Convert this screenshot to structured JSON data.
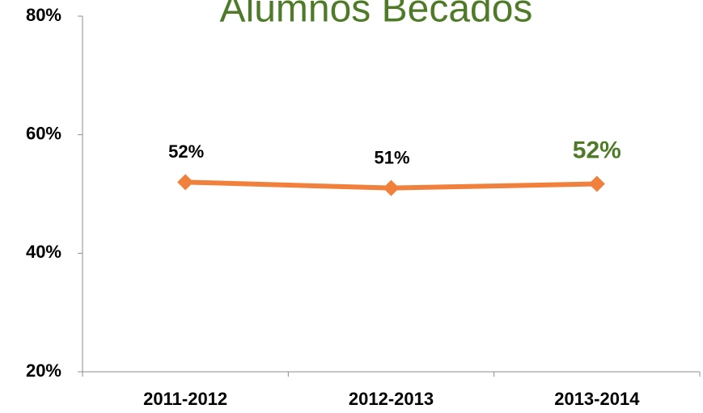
{
  "chart_data": {
    "type": "line",
    "title": "Alumnos Becados",
    "categories": [
      "2011-2012",
      "2012-2013",
      "2013-2014"
    ],
    "values": [
      52,
      51,
      51.7
    ],
    "value_labels": [
      "52%",
      "51%",
      "52%"
    ],
    "value_label_colors": [
      "#000000",
      "#000000",
      "#4f7a28"
    ],
    "color": "#f0803c",
    "title_color": "#4f7a28",
    "ylim": [
      20,
      80
    ],
    "yticks": [
      {
        "value": 20,
        "label": "20%"
      },
      {
        "value": 40,
        "label": "40%"
      },
      {
        "value": 60,
        "label": "60%"
      },
      {
        "value": 80,
        "label": "80%"
      }
    ],
    "grid": false
  }
}
